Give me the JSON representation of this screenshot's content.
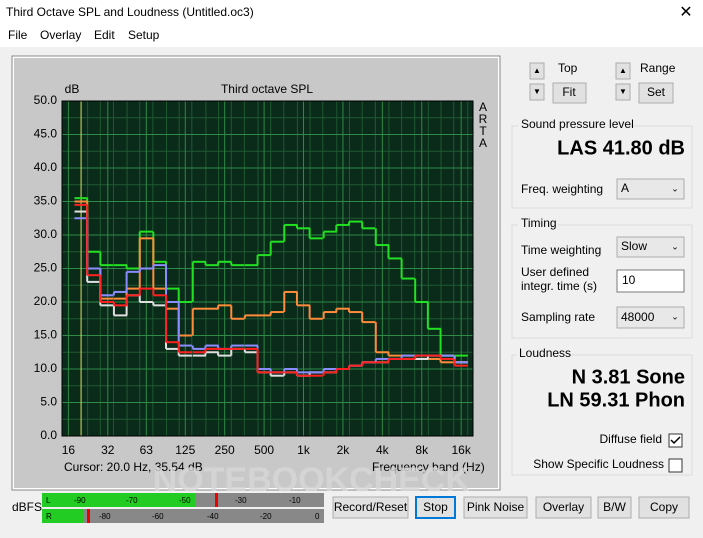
{
  "window": {
    "title": "Third Octave SPL and Loudness (Untitled.oc3)"
  },
  "menu": [
    "File",
    "Overlay",
    "Edit",
    "Setup"
  ],
  "chart_data": {
    "type": "line",
    "title": "Third octave SPL",
    "y_label": "dB",
    "x_label": "Frequency band (Hz)",
    "side_label": [
      "A",
      "R",
      "T",
      "A"
    ],
    "cursor": "Cursor:  20.0 Hz, 35.54 dB",
    "log_x": true,
    "grid": true,
    "x": [
      20,
      25,
      31.5,
      40,
      50,
      63,
      80,
      100,
      125,
      160,
      200,
      250,
      315,
      400,
      500,
      630,
      800,
      1000,
      1250,
      1600,
      2000,
      2500,
      3150,
      4000,
      5000,
      6300,
      8000,
      10000,
      12500,
      16000
    ],
    "series": [
      {
        "name": "Green",
        "color": "#22e022",
        "values": [
          35.5,
          27.5,
          25.5,
          25.5,
          25,
          30.5,
          26,
          22,
          20,
          26,
          25.5,
          26,
          25.5,
          25.5,
          27,
          29,
          31.5,
          31,
          29.5,
          30.5,
          31.5,
          32,
          31,
          28.5,
          26.5,
          23.5,
          20,
          16,
          12,
          12
        ]
      },
      {
        "name": "Orange",
        "color": "#ff8c3a",
        "values": [
          35,
          25,
          20.5,
          20.5,
          22,
          29.5,
          22,
          19,
          15,
          19,
          19,
          19.5,
          17.5,
          18,
          18,
          18.5,
          21.5,
          19.5,
          17.5,
          18.5,
          19,
          18.5,
          17,
          12.5,
          12,
          12,
          11.5,
          11.5,
          11,
          11
        ]
      },
      {
        "name": "White",
        "color": "#e0e0e0",
        "values": [
          33.5,
          23,
          19.5,
          18,
          21,
          20,
          19.5,
          13,
          12,
          12,
          12.5,
          12,
          13,
          12.5,
          9.5,
          9,
          9.5,
          9,
          9.5,
          9.5,
          10,
          10.5,
          11,
          11,
          11.5,
          11.5,
          11.5,
          12,
          12,
          11
        ]
      },
      {
        "name": "Blue",
        "color": "#8a8cff",
        "values": [
          32.5,
          25,
          21,
          21.5,
          24.5,
          25,
          25.5,
          20,
          13.5,
          13,
          13.5,
          13,
          13.5,
          13.5,
          10,
          9.5,
          10,
          9.5,
          9.5,
          10,
          10,
          10.5,
          11,
          11.5,
          11.5,
          12,
          12,
          12,
          12,
          11
        ]
      },
      {
        "name": "Red",
        "color": "#ff2020",
        "values": [
          34.5,
          24,
          20,
          19.5,
          21,
          22,
          21,
          14,
          12.5,
          12.5,
          13,
          13,
          13,
          13,
          9.5,
          9.5,
          9.5,
          9,
          9,
          9.5,
          10,
          10.5,
          11,
          11,
          11.5,
          11.5,
          12,
          12,
          11.5,
          10.5
        ]
      }
    ],
    "xlim": [
      14.3,
      19700
    ],
    "ylim": [
      0,
      50
    ],
    "xticks": [
      16,
      32,
      63,
      125,
      250,
      500,
      {
        "value": 1000,
        "label": "1k"
      },
      {
        "value": 2000,
        "label": "2k"
      },
      {
        "value": 4000,
        "label": "4k"
      },
      {
        "value": 8000,
        "label": "8k"
      },
      {
        "value": 16000,
        "label": "16k"
      }
    ],
    "yticks": [
      {
        "value": 0,
        "label": "0.0"
      },
      {
        "value": 5,
        "label": "5.0"
      },
      {
        "value": 10,
        "label": "10.0"
      },
      {
        "value": 15,
        "label": "15.0"
      },
      {
        "value": 20,
        "label": "20.0"
      },
      {
        "value": 25,
        "label": "25.0"
      },
      {
        "value": 30,
        "label": "30.0"
      },
      {
        "value": 35,
        "label": "35.0"
      },
      {
        "value": 40,
        "label": "40.0"
      },
      {
        "value": 45,
        "label": "45.0"
      },
      {
        "value": 50,
        "label": "50.0"
      }
    ]
  },
  "controls": {
    "top": "Top",
    "fit": "Fit",
    "range": "Range",
    "set": "Set"
  },
  "spl": {
    "heading": "Sound pressure level",
    "reading": "LAS 41.80 dB",
    "weighting_label": "Freq. weighting",
    "weighting": "A"
  },
  "timing": {
    "heading": "Timing",
    "time_weighting_label": "Time weighting",
    "time_weighting": "Slow",
    "integr_label": [
      "User defined",
      "integr. time (s)"
    ],
    "integr_value": "10",
    "sampling_label": "Sampling rate",
    "sampling": "48000"
  },
  "loudness": {
    "heading": "Loudness",
    "n": "N 3.81 Sone",
    "ln": "LN 59.31 Phon",
    "diffuse": "Diffuse field",
    "specific": "Show Specific Loudness"
  },
  "meter": {
    "label": "dBFS",
    "l": "L",
    "r": "R",
    "top_scale": [
      "-90",
      "-70",
      "-50",
      "-30",
      "-10"
    ],
    "bottom_scale": [
      "-80",
      "-60",
      "-40",
      "-20",
      "0"
    ]
  },
  "buttons": [
    "Record/Reset",
    "Stop",
    "Pink Noise",
    "Overlay",
    "B/W",
    "Copy"
  ],
  "watermark": "NOTEBOOKCHECK"
}
